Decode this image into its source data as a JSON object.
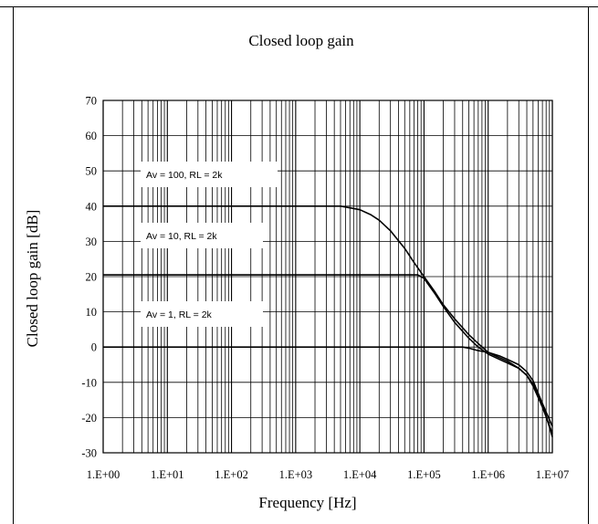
{
  "chart_data": {
    "type": "line",
    "title": "Closed loop gain",
    "xlabel": "Frequency [Hz]",
    "ylabel": "Closed loop gain [dB]",
    "x_scale": "log",
    "xlim": [
      1,
      10000000
    ],
    "ylim": [
      -30,
      70
    ],
    "grid": true,
    "x_ticks": [
      "1.E+00",
      "1.E+01",
      "1.E+02",
      "1.E+03",
      "1.E+04",
      "1.E+05",
      "1.E+06",
      "1.E+07"
    ],
    "y_ticks": [
      "70",
      "60",
      "50",
      "40",
      "30",
      "20",
      "10",
      "0",
      "-10",
      "-20",
      "-30"
    ],
    "annotations": [
      {
        "text": "Av = 100, RL = 2k",
        "series": 0
      },
      {
        "text": "Av = 10, RL = 2k",
        "series": 1
      },
      {
        "text": "Av = 1, RL = 2k",
        "series": 2
      }
    ],
    "series": [
      {
        "points": [
          [
            1,
            40
          ],
          [
            5000,
            40
          ],
          [
            7000,
            39.5
          ],
          [
            10000,
            39
          ],
          [
            15000,
            37.5
          ],
          [
            20000,
            36
          ],
          [
            30000,
            33
          ],
          [
            50000,
            28
          ],
          [
            70000,
            24
          ],
          [
            100000,
            20
          ],
          [
            150000,
            15.5
          ],
          [
            200000,
            12
          ],
          [
            300000,
            8
          ],
          [
            500000,
            3.5
          ],
          [
            700000,
            1
          ],
          [
            1000000,
            -1.5
          ],
          [
            1500000,
            -3
          ],
          [
            2000000,
            -4
          ],
          [
            3000000,
            -6
          ],
          [
            4000000,
            -8
          ],
          [
            5000000,
            -10.5
          ],
          [
            7000000,
            -16
          ],
          [
            10000000,
            -22.5
          ]
        ]
      },
      {
        "points": [
          [
            1,
            20.5
          ],
          [
            80000,
            20.5
          ],
          [
            100000,
            19.5
          ],
          [
            150000,
            15
          ],
          [
            200000,
            11.5
          ],
          [
            300000,
            7
          ],
          [
            500000,
            2.5
          ],
          [
            700000,
            0
          ],
          [
            1000000,
            -2
          ],
          [
            1500000,
            -3.5
          ],
          [
            2000000,
            -4.5
          ],
          [
            3000000,
            -6
          ],
          [
            4000000,
            -8
          ],
          [
            5000000,
            -11
          ],
          [
            7000000,
            -17
          ],
          [
            10000000,
            -24.5
          ]
        ]
      },
      {
        "points": [
          [
            1,
            0
          ],
          [
            400000,
            0
          ],
          [
            500000,
            -0.3
          ],
          [
            700000,
            -1
          ],
          [
            1000000,
            -1.5
          ],
          [
            1500000,
            -2.5
          ],
          [
            2000000,
            -3.5
          ],
          [
            3000000,
            -5
          ],
          [
            4000000,
            -7
          ],
          [
            5000000,
            -9.5
          ],
          [
            7000000,
            -16
          ],
          [
            10000000,
            -25.5
          ]
        ]
      }
    ]
  }
}
